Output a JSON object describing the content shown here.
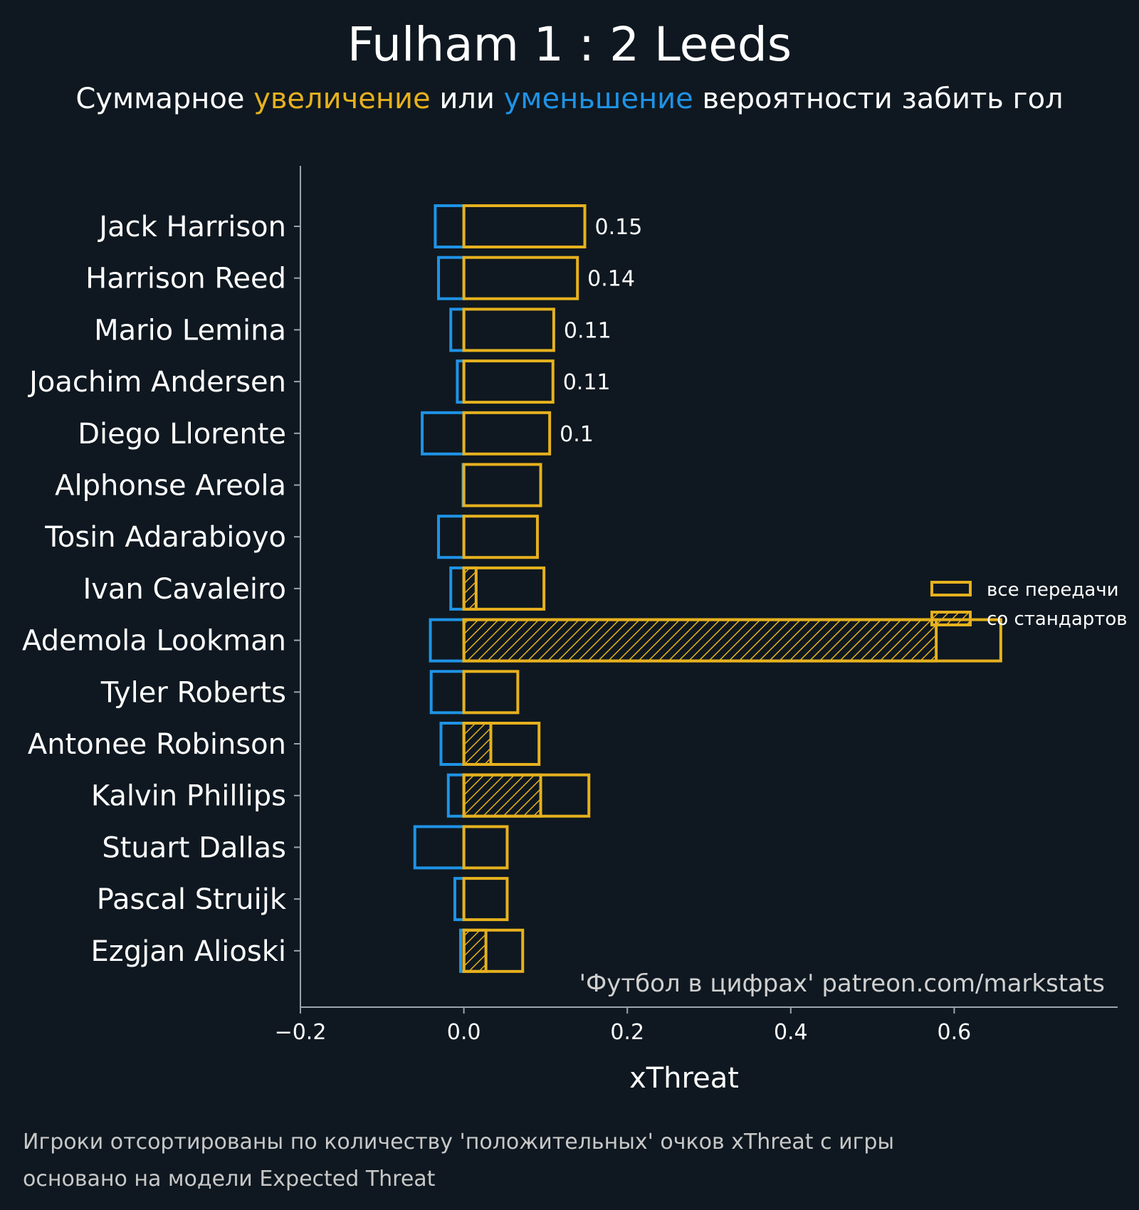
{
  "chart_data": {
    "type": "bar",
    "orientation": "horizontal",
    "title": "Fulham 1 : 2 Leeds",
    "subtitle": {
      "before": "Суммарное ",
      "increase_word": "увеличение",
      "middle": " или ",
      "decrease_word": "уменьшение",
      "after": " вероятности забить гол"
    },
    "xlabel": "xThreat",
    "xlim": [
      -0.2,
      0.8
    ],
    "xticks": [
      -0.2,
      0.0,
      0.2,
      0.4,
      0.6
    ],
    "xtick_labels": [
      "−0.2",
      "0.0",
      "0.2",
      "0.4",
      "0.6"
    ],
    "categories": [
      "Jack Harrison",
      "Harrison Reed",
      "Mario Lemina",
      "Joachim Andersen",
      "Diego Llorente",
      "Alphonse Areola",
      "Tosin Adarabioyo",
      "Ivan Cavaleiro",
      "Ademola Lookman",
      "Tyler Roberts",
      "Antonee Robinson",
      "Kalvin Phillips",
      "Stuart Dallas",
      "Pascal Struijk",
      "Ezgjan Alioski"
    ],
    "series": [
      {
        "name": "все передачи",
        "values": [
          0.148,
          0.139,
          0.11,
          0.109,
          0.105,
          0.094,
          0.09,
          0.098,
          0.657,
          0.066,
          0.092,
          0.153,
          0.053,
          0.053,
          0.072
        ]
      },
      {
        "name": "со стандартов",
        "values": [
          0,
          0,
          0,
          0,
          0,
          0,
          0,
          0.015,
          0.578,
          0,
          0.033,
          0.094,
          0,
          0,
          0.027
        ]
      },
      {
        "values": [
          -0.035,
          -0.031,
          -0.016,
          -0.008,
          -0.051,
          -0.001,
          -0.031,
          -0.016,
          -0.041,
          -0.04,
          -0.028,
          -0.019,
          -0.06,
          -0.011,
          -0.004
        ]
      }
    ],
    "data_labels": [
      "0.15",
      "0.14",
      "0.11",
      "0.11",
      "0.1",
      "",
      "",
      "",
      "",
      "",
      "",
      "",
      "",
      "",
      ""
    ],
    "legend_placement": "center-right",
    "grid": false
  },
  "colors": {
    "background": "#0f1820",
    "increase": "#e6b11e",
    "decrease": "#1f93e6",
    "axis": "#9aa4ad",
    "text": "#ffffff"
  },
  "credit": "'Футбол в цифрах' patreon.com/markstats",
  "footnotes": [
    "Игроки отсортированы по количеству 'положительных' очков xThreat с игры",
    "основано на модели Expected Threat"
  ]
}
